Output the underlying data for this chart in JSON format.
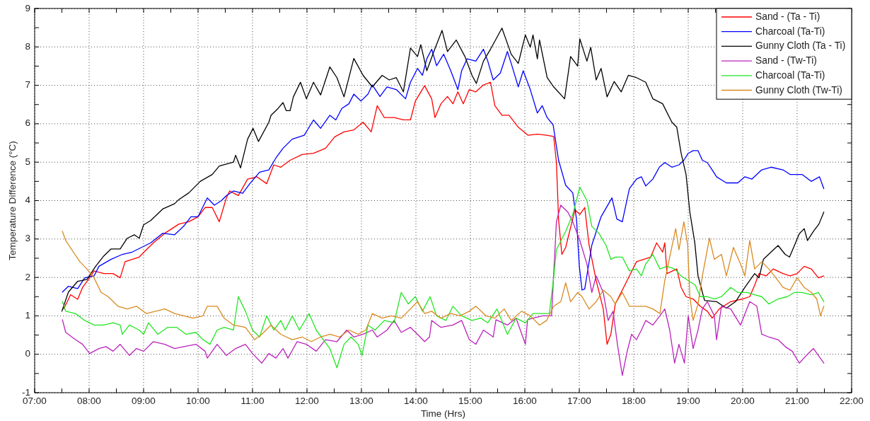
{
  "chart_data": {
    "type": "line",
    "xlabel": "Time (Hrs)",
    "ylabel": "Temperature Difference (°C)",
    "xlim": [
      7,
      22
    ],
    "ylim": [
      -1,
      9
    ],
    "xticks": [
      {
        "value": 7,
        "label": "07:00"
      },
      {
        "value": 7.5,
        "label": null
      },
      {
        "value": 8,
        "label": "08:00"
      },
      {
        "value": 8.5,
        "label": null
      },
      {
        "value": 9,
        "label": "09:00"
      },
      {
        "value": 9.5,
        "label": null
      },
      {
        "value": 10,
        "label": "10:00"
      },
      {
        "value": 10.5,
        "label": null
      },
      {
        "value": 11,
        "label": "11:00"
      },
      {
        "value": 11.5,
        "label": null
      },
      {
        "value": 12,
        "label": "12:00"
      },
      {
        "value": 12.5,
        "label": null
      },
      {
        "value": 13,
        "label": "13:00"
      },
      {
        "value": 13.5,
        "label": null
      },
      {
        "value": 14,
        "label": "14:00"
      },
      {
        "value": 14.5,
        "label": null
      },
      {
        "value": 15,
        "label": "15:00"
      },
      {
        "value": 15.5,
        "label": null
      },
      {
        "value": 16,
        "label": "16:00"
      },
      {
        "value": 16.5,
        "label": null
      },
      {
        "value": 17,
        "label": "17:00"
      },
      {
        "value": 17.5,
        "label": null
      },
      {
        "value": 18,
        "label": "18:00"
      },
      {
        "value": 18.5,
        "label": null
      },
      {
        "value": 19,
        "label": "19:00"
      },
      {
        "value": 19.5,
        "label": null
      },
      {
        "value": 20,
        "label": "20:00"
      },
      {
        "value": 20.5,
        "label": null
      },
      {
        "value": 21,
        "label": "21:00"
      },
      {
        "value": 21.5,
        "label": null
      },
      {
        "value": 22,
        "label": "22:00"
      }
    ],
    "yticks": [
      -1,
      {
        "value": -0.5,
        "label": null
      },
      0,
      {
        "value": 0.5,
        "label": null
      },
      1,
      {
        "value": 1.5,
        "label": null
      },
      2,
      {
        "value": 2.5,
        "label": null
      },
      3,
      {
        "value": 3.5,
        "label": null
      },
      4,
      {
        "value": 4.5,
        "label": null
      },
      5,
      {
        "value": 5.5,
        "label": null
      },
      6,
      {
        "value": 6.5,
        "label": null
      },
      7,
      {
        "value": 7.5,
        "label": null
      },
      8,
      {
        "value": 8.5,
        "label": null
      },
      9
    ],
    "grid": true,
    "legend": "top right",
    "line_style": "solid",
    "series": [
      {
        "name": "Sand - (Ta - Ti)",
        "color": "#ff0000",
        "x": [
          7.53,
          7.6,
          7.66,
          7.79,
          7.88,
          8.01,
          8.09,
          8.27,
          8.44,
          8.57,
          8.66,
          8.79,
          8.92,
          9.05,
          9.18,
          9.39,
          9.65,
          9.83,
          10.0,
          10.13,
          10.26,
          10.39,
          10.52,
          10.58,
          10.74,
          10.91,
          11.08,
          11.26,
          11.39,
          11.52,
          11.69,
          11.91,
          12.12,
          12.34,
          12.51,
          12.68,
          12.86,
          13.03,
          13.18,
          13.29,
          13.42,
          13.6,
          13.77,
          13.9,
          13.99,
          14.16,
          14.29,
          14.35,
          14.46,
          14.58,
          14.68,
          14.77,
          14.87,
          14.98,
          15.1,
          15.24,
          15.37,
          15.45,
          15.58,
          15.71,
          15.88,
          16.06,
          16.23,
          16.4,
          16.53,
          16.58,
          16.62,
          16.68,
          16.75,
          16.92,
          17.01,
          17.1,
          17.18,
          17.31,
          17.44,
          17.51,
          17.58,
          17.66,
          17.79,
          17.92,
          18.05,
          18.18,
          18.31,
          18.42,
          18.53,
          18.57,
          18.61,
          18.79,
          18.87,
          18.96,
          19.09,
          19.22,
          19.35,
          19.44,
          19.57,
          19.78,
          20.0,
          20.13,
          20.22,
          20.3,
          20.43,
          20.56,
          20.74,
          20.87,
          21.0,
          21.13,
          21.26,
          21.39,
          21.49
        ],
        "values": [
          1.18,
          1.37,
          1.55,
          1.43,
          1.74,
          1.99,
          2.17,
          2.1,
          2.1,
          1.99,
          2.41,
          2.47,
          2.53,
          2.72,
          2.9,
          3.15,
          3.39,
          3.45,
          3.58,
          3.82,
          3.82,
          3.45,
          4.07,
          4.25,
          4.13,
          4.56,
          4.62,
          4.44,
          4.93,
          4.87,
          5.05,
          5.2,
          5.23,
          5.36,
          5.66,
          5.79,
          5.84,
          6.04,
          5.79,
          6.47,
          6.16,
          6.16,
          6.1,
          6.1,
          6.59,
          6.99,
          6.65,
          6.16,
          6.52,
          6.71,
          6.52,
          6.83,
          6.52,
          6.89,
          6.83,
          7.01,
          7.08,
          6.47,
          6.22,
          6.22,
          5.91,
          5.7,
          5.73,
          5.7,
          5.67,
          5.0,
          3.5,
          2.6,
          2.78,
          3.76,
          3.64,
          3.82,
          2.84,
          1.92,
          1.18,
          0.26,
          0.52,
          1.31,
          1.67,
          2.04,
          2.41,
          2.47,
          2.53,
          2.9,
          2.66,
          2.9,
          2.1,
          2.22,
          1.74,
          1.5,
          1.44,
          1.25,
          1.12,
          0.94,
          1.18,
          1.37,
          1.44,
          1.5,
          1.8,
          2.1,
          2.04,
          2.22,
          2.1,
          2.04,
          2.1,
          2.29,
          2.22,
          1.99,
          2.04
        ]
      },
      {
        "name": "Charcoal (Ta-Ti)",
        "color": "#0000ff",
        "x": [
          7.51,
          7.62,
          7.79,
          7.92,
          8.09,
          8.18,
          8.4,
          8.61,
          8.79,
          8.96,
          9.13,
          9.35,
          9.57,
          9.74,
          9.87,
          10.0,
          10.17,
          10.3,
          10.43,
          10.52,
          10.65,
          10.82,
          10.95,
          11.13,
          11.3,
          11.43,
          11.56,
          11.73,
          11.95,
          12.12,
          12.25,
          12.42,
          12.53,
          12.64,
          12.77,
          12.86,
          12.99,
          13.12,
          13.2,
          13.34,
          13.47,
          13.64,
          13.81,
          13.9,
          14.03,
          14.12,
          14.2,
          14.29,
          14.38,
          14.51,
          14.64,
          14.77,
          14.84,
          14.94,
          15.1,
          15.24,
          15.32,
          15.42,
          15.55,
          15.68,
          15.75,
          15.88,
          15.97,
          16.1,
          16.23,
          16.32,
          16.41,
          16.52,
          16.62,
          16.75,
          16.88,
          16.95,
          17.0,
          17.05,
          17.1,
          17.23,
          17.4,
          17.6,
          17.69,
          17.79,
          17.92,
          18.05,
          18.14,
          18.22,
          18.35,
          18.47,
          18.57,
          18.7,
          18.83,
          18.92,
          19.0,
          19.09,
          19.18,
          19.26,
          19.35,
          19.44,
          19.52,
          19.7,
          19.91,
          20.04,
          20.17,
          20.35,
          20.52,
          20.74,
          20.87,
          21.09,
          21.26,
          21.41,
          21.49
        ],
        "values": [
          1.62,
          1.77,
          1.71,
          1.99,
          2.04,
          2.29,
          2.47,
          2.6,
          2.66,
          2.78,
          2.9,
          3.15,
          3.11,
          3.34,
          3.58,
          3.58,
          4.07,
          3.88,
          4.0,
          4.13,
          4.25,
          4.19,
          4.44,
          4.74,
          4.8,
          5.11,
          5.36,
          5.6,
          5.7,
          6.1,
          5.88,
          6.22,
          6.1,
          6.4,
          6.52,
          6.77,
          6.59,
          6.77,
          7.01,
          6.71,
          6.96,
          6.89,
          6.65,
          7.08,
          7.44,
          7.26,
          7.69,
          7.94,
          7.51,
          7.81,
          7.38,
          6.89,
          7.38,
          7.69,
          7.63,
          7.94,
          7.63,
          7.14,
          7.32,
          7.88,
          7.57,
          6.96,
          7.38,
          6.89,
          6.28,
          6.47,
          6.16,
          5.97,
          5.05,
          4.4,
          4.2,
          3.5,
          2.3,
          1.67,
          1.7,
          2.84,
          3.58,
          4.07,
          3.52,
          3.45,
          4.31,
          4.56,
          4.62,
          4.38,
          4.56,
          4.87,
          4.99,
          4.87,
          4.93,
          5.05,
          5.23,
          5.3,
          5.3,
          5.05,
          4.99,
          4.8,
          4.62,
          4.46,
          4.46,
          4.62,
          4.56,
          4.8,
          4.87,
          4.8,
          4.68,
          4.68,
          4.5,
          4.62,
          4.31
        ]
      },
      {
        "name": "Gunny Cloth (Ta - Ti)",
        "color": "#000000",
        "x": [
          7.5,
          7.62,
          7.79,
          7.96,
          8.12,
          8.27,
          8.4,
          8.57,
          8.7,
          8.83,
          8.92,
          9.0,
          9.13,
          9.35,
          9.57,
          9.65,
          9.83,
          10.04,
          10.26,
          10.39,
          10.65,
          10.69,
          10.78,
          10.91,
          11.01,
          11.11,
          11.3,
          11.34,
          11.47,
          11.56,
          11.62,
          11.69,
          11.75,
          11.88,
          11.99,
          12.12,
          12.25,
          12.42,
          12.55,
          12.68,
          12.86,
          13.03,
          13.2,
          13.38,
          13.51,
          13.64,
          13.77,
          13.9,
          14.03,
          14.09,
          14.2,
          14.33,
          14.48,
          14.58,
          14.74,
          14.9,
          15.03,
          15.11,
          15.24,
          15.37,
          15.58,
          15.75,
          15.88,
          16.01,
          16.1,
          16.15,
          16.23,
          16.27,
          16.41,
          16.53,
          16.73,
          16.84,
          16.97,
          17.01,
          17.14,
          17.21,
          17.31,
          17.4,
          17.51,
          17.64,
          17.77,
          17.9,
          18.05,
          18.22,
          18.35,
          18.53,
          18.7,
          18.79,
          18.87,
          18.96,
          19.03,
          19.12,
          19.18,
          19.3,
          19.52,
          19.7,
          19.87,
          20.04,
          20.22,
          20.3,
          20.38,
          20.52,
          20.65,
          20.78,
          20.86,
          20.95,
          21.04,
          21.13,
          21.19,
          21.3,
          21.4,
          21.49
        ],
        "values": [
          1.12,
          1.62,
          1.9,
          1.95,
          2.29,
          2.56,
          2.74,
          2.74,
          3.02,
          3.11,
          3.02,
          3.37,
          3.48,
          3.78,
          3.92,
          4.03,
          4.2,
          4.5,
          4.68,
          4.9,
          5.0,
          5.18,
          4.85,
          5.6,
          5.88,
          5.54,
          6.04,
          6.22,
          6.4,
          6.55,
          6.34,
          6.34,
          6.7,
          7.08,
          6.65,
          7.08,
          6.75,
          7.48,
          7.2,
          6.7,
          7.7,
          7.26,
          6.96,
          7.26,
          7.14,
          7.2,
          6.83,
          7.97,
          7.75,
          8.06,
          7.38,
          7.88,
          8.43,
          7.88,
          8.18,
          7.75,
          7.26,
          7.05,
          7.63,
          7.94,
          8.49,
          7.81,
          7.57,
          8.31,
          7.99,
          8.31,
          7.69,
          8.18,
          7.2,
          6.96,
          6.65,
          7.75,
          7.5,
          8.21,
          7.63,
          7.99,
          7.14,
          7.44,
          6.7,
          7.1,
          6.83,
          7.26,
          7.2,
          7.08,
          6.65,
          6.52,
          6.04,
          5.91,
          5.23,
          4.68,
          3.7,
          2.91,
          2.04,
          1.4,
          1.37,
          1.2,
          1.37,
          1.74,
          2.1,
          1.99,
          2.47,
          2.66,
          2.83,
          2.6,
          2.53,
          2.83,
          3.14,
          3.27,
          2.96,
          3.2,
          3.39,
          3.7
        ]
      },
      {
        "name": "Sand - (Tw-Ti)",
        "color": "#bb22bb",
        "x": [
          7.51,
          7.57,
          7.75,
          7.88,
          8.01,
          8.18,
          8.31,
          8.44,
          8.57,
          8.74,
          8.87,
          9.0,
          9.18,
          9.39,
          9.57,
          9.74,
          9.96,
          10.13,
          10.17,
          10.35,
          10.52,
          10.69,
          10.87,
          11.0,
          11.17,
          11.3,
          11.43,
          11.56,
          11.65,
          11.82,
          11.99,
          12.17,
          12.34,
          12.55,
          12.73,
          12.86,
          13.03,
          13.2,
          13.29,
          13.47,
          13.6,
          13.73,
          13.9,
          14.03,
          14.16,
          14.25,
          14.29,
          14.46,
          14.68,
          14.84,
          14.98,
          15.1,
          15.24,
          15.42,
          15.47,
          15.68,
          15.84,
          16.01,
          16.05,
          16.15,
          16.32,
          16.49,
          16.58,
          16.66,
          16.79,
          16.88,
          17.01,
          17.14,
          17.23,
          17.31,
          17.44,
          17.53,
          17.62,
          17.7,
          17.79,
          17.88,
          17.96,
          18.05,
          18.14,
          18.22,
          18.35,
          18.48,
          18.57,
          18.66,
          18.75,
          18.83,
          18.93,
          19.0,
          19.09,
          19.18,
          19.26,
          19.35,
          19.48,
          19.52,
          19.61,
          19.78,
          19.96,
          20.13,
          20.26,
          20.35,
          20.48,
          20.65,
          20.78,
          20.91,
          21.04,
          21.17,
          21.3,
          21.39,
          21.49
        ],
        "values": [
          0.9,
          0.57,
          0.38,
          0.26,
          0.02,
          0.15,
          0.2,
          0.08,
          0.26,
          -0.03,
          0.15,
          0.08,
          0.33,
          0.26,
          0.15,
          0.2,
          0.26,
          0.08,
          -0.1,
          0.26,
          -0.03,
          0.15,
          0.26,
          0.02,
          -0.23,
          0.02,
          -0.1,
          0.15,
          -0.1,
          0.33,
          0.26,
          0.08,
          0.38,
          0.33,
          0.63,
          0.45,
          0.52,
          0.63,
          0.45,
          0.63,
          0.88,
          0.57,
          0.7,
          0.52,
          0.33,
          0.45,
          0.88,
          0.7,
          0.76,
          0.88,
          0.38,
          0.26,
          0.63,
          0.45,
          0.9,
          0.76,
          0.94,
          0.26,
          0.9,
          0.94,
          1.0,
          1.0,
          3.45,
          3.88,
          3.7,
          3.45,
          2.96,
          2.35,
          1.61,
          2.04,
          1.61,
          0.88,
          1.12,
          0.26,
          -0.55,
          0.08,
          0.52,
          0.38,
          0.63,
          0.88,
          0.76,
          1.0,
          1.18,
          0.63,
          -0.23,
          0.26,
          -0.23,
          1.0,
          0.15,
          0.63,
          1.18,
          1.37,
          1.0,
          0.38,
          1.25,
          1.18,
          0.76,
          1.37,
          1.25,
          0.52,
          0.45,
          0.38,
          0.2,
          0.08,
          -0.23,
          -0.03,
          0.15,
          -0.03,
          -0.23
        ]
      },
      {
        "name": "Charcoal (Ta-Ti)",
        "color": "#22e622",
        "x": [
          7.51,
          7.57,
          7.75,
          7.92,
          8.09,
          8.27,
          8.44,
          8.57,
          8.61,
          8.74,
          8.92,
          9.0,
          9.09,
          9.26,
          9.44,
          9.61,
          9.78,
          9.96,
          10.09,
          10.22,
          10.35,
          10.48,
          10.65,
          10.74,
          10.87,
          11.0,
          11.13,
          11.26,
          11.39,
          11.52,
          11.6,
          11.73,
          11.86,
          12.04,
          12.17,
          12.3,
          12.42,
          12.55,
          12.68,
          12.81,
          12.94,
          13.01,
          13.12,
          13.25,
          13.42,
          13.6,
          13.73,
          13.86,
          13.99,
          14.12,
          14.26,
          14.38,
          14.55,
          14.68,
          14.84,
          15.03,
          15.19,
          15.32,
          15.49,
          15.68,
          15.84,
          16.01,
          16.15,
          16.32,
          16.45,
          16.53,
          16.58,
          16.75,
          16.88,
          17.01,
          17.14,
          17.23,
          17.36,
          17.49,
          17.58,
          17.66,
          17.79,
          17.92,
          18.05,
          18.14,
          18.22,
          18.35,
          18.48,
          18.61,
          18.75,
          18.87,
          19.0,
          19.13,
          19.22,
          19.35,
          19.48,
          19.61,
          19.78,
          19.91,
          20.09,
          20.22,
          20.35,
          20.48,
          20.65,
          20.82,
          20.95,
          21.09,
          21.26,
          21.39,
          21.49
        ],
        "values": [
          1.37,
          1.12,
          1.06,
          0.88,
          0.76,
          0.76,
          0.82,
          0.76,
          0.52,
          0.76,
          0.63,
          0.52,
          0.82,
          0.52,
          0.7,
          0.7,
          0.52,
          0.57,
          0.38,
          0.26,
          0.63,
          0.7,
          0.63,
          1.5,
          1.12,
          0.63,
          0.45,
          1.0,
          0.63,
          0.88,
          0.63,
          1.0,
          0.63,
          1.06,
          0.63,
          0.38,
          0.15,
          -0.35,
          0.26,
          0.45,
          0.26,
          -0.03,
          0.76,
          0.63,
          0.88,
          0.82,
          1.61,
          1.31,
          1.5,
          1.12,
          1.5,
          1.0,
          0.88,
          1.25,
          1.0,
          0.88,
          0.94,
          0.82,
          1.18,
          0.52,
          0.94,
          0.82,
          1.06,
          1.06,
          1.06,
          2.0,
          2.72,
          3.2,
          3.64,
          4.35,
          4.0,
          3.33,
          3.15,
          2.84,
          2.47,
          2.53,
          2.53,
          2.17,
          2.22,
          2.04,
          2.35,
          2.6,
          2.22,
          2.29,
          2.22,
          2.04,
          1.92,
          1.8,
          1.5,
          1.5,
          1.44,
          1.5,
          1.74,
          1.61,
          1.61,
          1.55,
          1.5,
          1.31,
          1.44,
          1.5,
          1.61,
          1.61,
          1.55,
          1.61,
          1.37
        ]
      },
      {
        "name": "Gunny Cloth (Tw-Ti)",
        "color": "#d98a20",
        "x": [
          7.51,
          7.57,
          7.71,
          7.83,
          7.96,
          8.09,
          8.22,
          8.35,
          8.53,
          8.7,
          8.87,
          9.05,
          9.22,
          9.39,
          9.57,
          9.74,
          9.91,
          10.09,
          10.17,
          10.35,
          10.48,
          10.65,
          10.87,
          11.04,
          11.17,
          11.34,
          11.52,
          11.73,
          11.91,
          12.08,
          12.25,
          12.42,
          12.6,
          12.77,
          12.94,
          13.08,
          13.2,
          13.38,
          13.55,
          13.73,
          13.9,
          14.03,
          14.16,
          14.29,
          14.46,
          14.64,
          14.81,
          14.98,
          15.1,
          15.29,
          15.45,
          15.62,
          15.75,
          15.94,
          16.1,
          16.27,
          16.4,
          16.53,
          16.66,
          16.75,
          16.84,
          16.97,
          17.05,
          17.18,
          17.31,
          17.44,
          17.58,
          17.66,
          17.79,
          17.92,
          18.05,
          18.22,
          18.35,
          18.48,
          18.57,
          18.66,
          18.77,
          18.83,
          18.92,
          18.99,
          19.03,
          19.09,
          19.18,
          19.26,
          19.39,
          19.48,
          19.61,
          19.7,
          19.83,
          19.96,
          20.04,
          20.13,
          20.22,
          20.35,
          20.48,
          20.61,
          20.74,
          20.87,
          21.0,
          21.13,
          21.26,
          21.36,
          21.43,
          21.49
        ],
        "values": [
          3.2,
          2.96,
          2.66,
          2.41,
          2.22,
          1.99,
          1.61,
          1.5,
          1.25,
          1.18,
          1.25,
          1.06,
          1.12,
          1.18,
          1.06,
          1.0,
          0.94,
          1.0,
          1.25,
          1.25,
          0.94,
          0.76,
          0.7,
          0.38,
          0.52,
          0.76,
          0.52,
          0.38,
          0.45,
          0.33,
          0.45,
          0.52,
          0.45,
          0.63,
          0.52,
          0.63,
          1.06,
          0.94,
          1.0,
          0.94,
          1.18,
          1.37,
          1.06,
          1.12,
          0.94,
          1.06,
          1.0,
          1.12,
          1.25,
          1.0,
          0.94,
          1.18,
          0.88,
          1.12,
          1.0,
          0.76,
          0.88,
          1.25,
          1.37,
          1.86,
          1.37,
          1.61,
          1.5,
          1.18,
          1.37,
          1.67,
          1.5,
          1.31,
          1.61,
          1.25,
          1.25,
          1.25,
          1.18,
          1.06,
          1.92,
          2.53,
          3.27,
          2.72,
          3.45,
          2.84,
          1.5,
          0.88,
          1.31,
          2.04,
          3.02,
          2.47,
          2.6,
          2.04,
          2.78,
          2.35,
          2.04,
          2.96,
          2.22,
          2.41,
          2.22,
          1.99,
          1.74,
          1.67,
          1.99,
          1.74,
          1.61,
          1.44,
          1.0,
          1.25
        ]
      }
    ]
  }
}
